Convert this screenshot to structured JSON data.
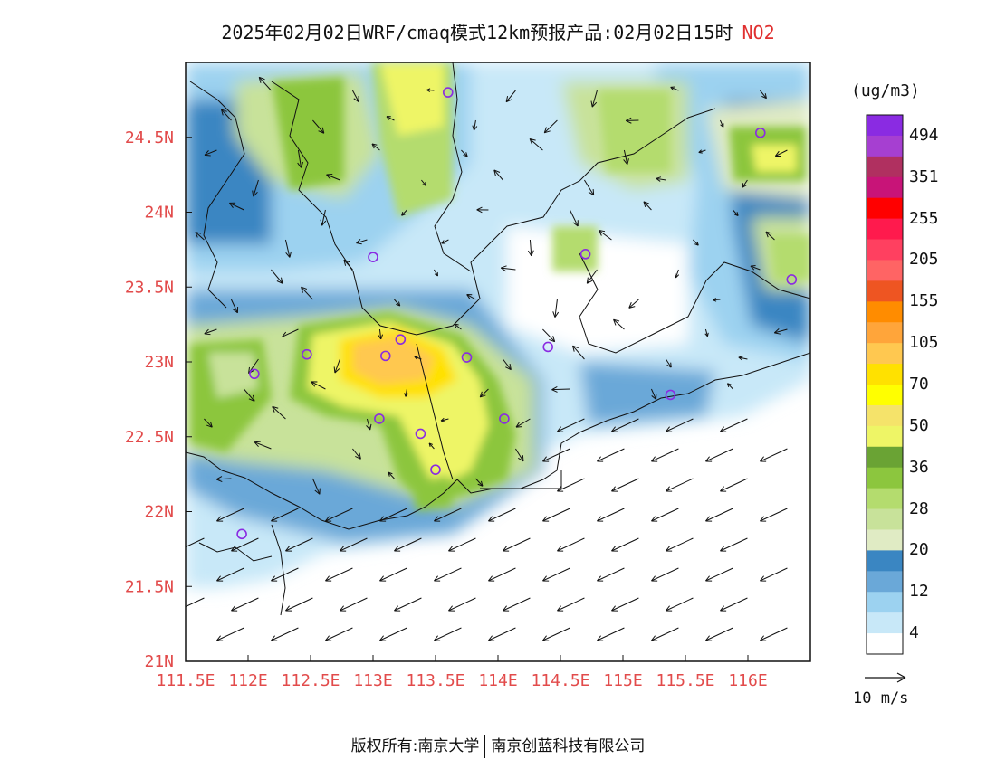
{
  "title": {
    "text": "2025年02月02日WRF/cmaq模式12km预报产品:02月02日15时",
    "pollutant": "NO2"
  },
  "map": {
    "lon_range": [
      111.5,
      116.5
    ],
    "lat_range": [
      21.0,
      25.0
    ],
    "x_ticks": [
      {
        "value": 111.5,
        "label": "111.5E"
      },
      {
        "value": 112,
        "label": "112E"
      },
      {
        "value": 112.5,
        "label": "112.5E"
      },
      {
        "value": 113,
        "label": "113E"
      },
      {
        "value": 113.5,
        "label": "113.5E"
      },
      {
        "value": 114,
        "label": "114E"
      },
      {
        "value": 114.5,
        "label": "114.5E"
      },
      {
        "value": 115,
        "label": "115E"
      },
      {
        "value": 115.5,
        "label": "115.5E"
      },
      {
        "value": 116,
        "label": "116E"
      }
    ],
    "y_ticks": [
      {
        "value": 21,
        "label": "21N"
      },
      {
        "value": 21.5,
        "label": "21.5N"
      },
      {
        "value": 22,
        "label": "22N"
      },
      {
        "value": 22.5,
        "label": "22.5N"
      },
      {
        "value": 23,
        "label": "23N"
      },
      {
        "value": 23.5,
        "label": "23.5N"
      },
      {
        "value": 24,
        "label": "24N"
      },
      {
        "value": 24.5,
        "label": "24.5N"
      }
    ],
    "stations": [
      {
        "lon": 113.6,
        "lat": 24.8
      },
      {
        "lon": 113.0,
        "lat": 23.7
      },
      {
        "lon": 114.7,
        "lat": 23.72
      },
      {
        "lon": 116.1,
        "lat": 24.53
      },
      {
        "lon": 116.35,
        "lat": 23.55
      },
      {
        "lon": 112.47,
        "lat": 23.05
      },
      {
        "lon": 113.1,
        "lat": 23.04
      },
      {
        "lon": 113.22,
        "lat": 23.15
      },
      {
        "lon": 113.75,
        "lat": 23.03
      },
      {
        "lon": 114.4,
        "lat": 23.1
      },
      {
        "lon": 112.05,
        "lat": 22.92
      },
      {
        "lon": 113.05,
        "lat": 22.62
      },
      {
        "lon": 113.38,
        "lat": 22.52
      },
      {
        "lon": 114.05,
        "lat": 22.62
      },
      {
        "lon": 113.5,
        "lat": 22.28
      },
      {
        "lon": 115.38,
        "lat": 22.78
      },
      {
        "lon": 111.95,
        "lat": 21.85
      }
    ],
    "wind": {
      "scale_label": "10 m/s"
    }
  },
  "colorbar": {
    "unit": "(ug/m3)",
    "labels": [
      "494",
      "351",
      "255",
      "205",
      "155",
      "105",
      "70",
      "50",
      "36",
      "28",
      "20",
      "12",
      "4"
    ],
    "colors": [
      "#8a2be2",
      "#a63fd1",
      "#b03060",
      "#c81478",
      "#ff0000",
      "#ff1a4d",
      "#ff4060",
      "#ff6464",
      "#ee5522",
      "#ff8c00",
      "#ffa53a",
      "#ffc850",
      "#ffe100",
      "#ffff00",
      "#f5e36a",
      "#eef566",
      "#6aa334",
      "#8cc63e",
      "#b4dc6e",
      "#c8e29a",
      "#e0ebc4",
      "#3a86c2",
      "#6aa8d8",
      "#9cd2f0",
      "#c8e8f8",
      "#ffffff"
    ]
  },
  "footer": {
    "left": "版权所有:南京大学",
    "right": "南京创蓝科技有限公司"
  }
}
